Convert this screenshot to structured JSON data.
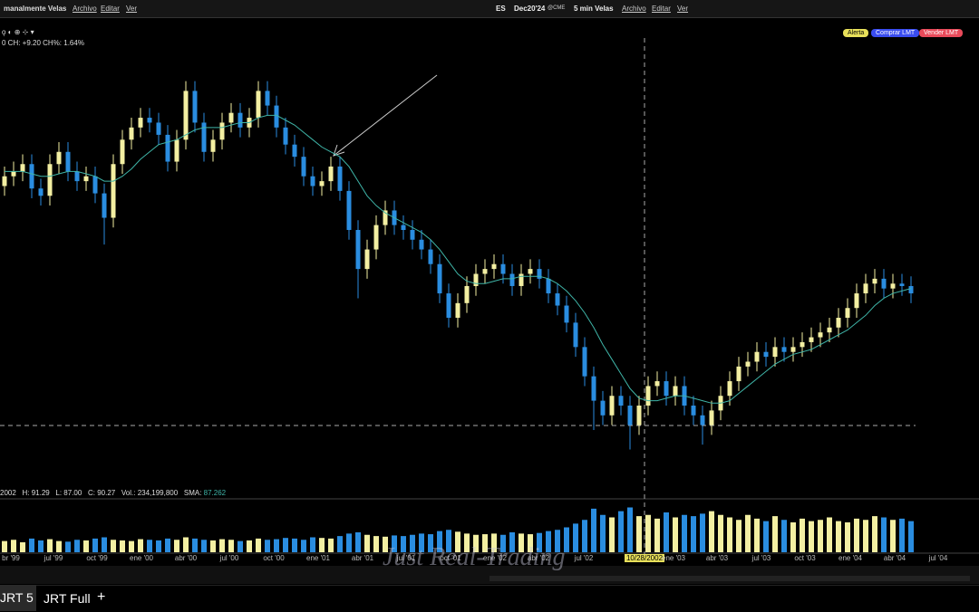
{
  "toolbar": {
    "left_title": "manalmente Velas",
    "left_menu": [
      "Archivo",
      "Editar",
      "Ver"
    ],
    "symbol": "ES",
    "contract": "Dec20'24",
    "exchange": "@CME",
    "interval": "5 min Velas",
    "right_menu": [
      "Archivo",
      "Editar",
      "Ver"
    ],
    "buttons": [
      "Alerta",
      "Comprar LMT",
      "Vender LMT"
    ],
    "change_line": "0 CH: +9.20 CH%: 1.64%"
  },
  "info_line": {
    "date": "2002",
    "high": "H: 91.29",
    "low": "L: 87.00",
    "close": "C: 90.27",
    "volume": "Vol.: 234,199,800",
    "sma_label": "SMA:",
    "sma_value": "87.262"
  },
  "time_labels": [
    "br '99",
    "jul '99",
    "oct '99",
    "ene '00",
    "abr '00",
    "jul '00",
    "oct '00",
    "ene '01",
    "abr '01",
    "jul '01",
    "oct '01",
    "ene '02",
    "abr '02",
    "jul '02",
    "10/28/2002",
    "ene '03",
    "abr '03",
    "jul '03",
    "oct '03",
    "ene '04",
    "abr '04",
    "jul '04"
  ],
  "watermark": "Just Real-Trading",
  "tabs": [
    "JRT 5",
    "JRT Full",
    "+"
  ],
  "chart_data": {
    "type": "candlestick",
    "open": [
      186,
      190,
      192,
      195,
      185,
      182,
      195,
      200,
      192,
      188,
      190,
      183,
      173,
      195,
      205,
      210,
      214,
      212,
      207,
      196,
      205,
      225,
      212,
      200,
      205,
      212,
      216,
      210,
      214,
      225,
      219,
      210,
      203,
      198,
      190,
      186,
      188,
      194,
      184,
      168,
      152,
      160,
      170,
      176,
      170,
      168,
      164,
      160,
      154,
      142,
      132,
      138,
      145,
      150,
      152,
      154,
      150,
      145,
      150,
      152,
      148,
      142,
      137,
      130,
      120,
      108,
      98,
      92,
      100,
      96,
      88,
      96,
      104,
      106,
      100,
      104,
      96,
      92,
      88,
      94,
      100,
      106,
      112,
      114,
      118,
      116,
      120,
      118,
      120,
      122,
      124,
      126,
      128,
      132,
      136,
      142,
      146,
      148,
      144,
      146,
      145
    ],
    "high": [
      194,
      196,
      199,
      199,
      189,
      199,
      204,
      204,
      196,
      194,
      194,
      187,
      199,
      209,
      214,
      218,
      218,
      216,
      211,
      209,
      229,
      229,
      216,
      209,
      216,
      220,
      220,
      218,
      229,
      229,
      223,
      214,
      207,
      202,
      194,
      192,
      198,
      198,
      188,
      172,
      164,
      174,
      180,
      180,
      174,
      172,
      168,
      164,
      158,
      146,
      142,
      149,
      154,
      156,
      158,
      158,
      154,
      154,
      156,
      156,
      152,
      146,
      141,
      134,
      124,
      112,
      102,
      104,
      104,
      100,
      100,
      108,
      110,
      110,
      108,
      108,
      100,
      96,
      98,
      104,
      110,
      116,
      118,
      122,
      122,
      124,
      124,
      124,
      126,
      128,
      130,
      132,
      136,
      140,
      146,
      150,
      152,
      152,
      150,
      150,
      149
    ],
    "low": [
      182,
      186,
      188,
      181,
      178,
      178,
      191,
      188,
      184,
      184,
      179,
      162,
      169,
      191,
      201,
      206,
      208,
      203,
      192,
      192,
      201,
      208,
      196,
      196,
      201,
      208,
      206,
      206,
      210,
      215,
      206,
      199,
      194,
      186,
      182,
      182,
      184,
      180,
      164,
      140,
      148,
      156,
      166,
      166,
      164,
      160,
      156,
      150,
      138,
      128,
      128,
      134,
      141,
      146,
      148,
      146,
      141,
      141,
      146,
      144,
      138,
      133,
      126,
      116,
      104,
      86,
      88,
      88,
      92,
      78,
      84,
      92,
      100,
      96,
      96,
      92,
      88,
      80,
      84,
      90,
      96,
      102,
      108,
      110,
      112,
      112,
      114,
      114,
      116,
      118,
      120,
      122,
      124,
      128,
      132,
      138,
      142,
      140,
      140,
      141,
      138
    ],
    "close": [
      190,
      192,
      195,
      185,
      182,
      195,
      200,
      192,
      188,
      190,
      183,
      173,
      195,
      205,
      210,
      214,
      212,
      207,
      196,
      205,
      225,
      212,
      200,
      205,
      212,
      216,
      210,
      214,
      225,
      219,
      210,
      203,
      198,
      190,
      186,
      188,
      194,
      184,
      168,
      152,
      160,
      170,
      176,
      170,
      168,
      164,
      160,
      154,
      142,
      132,
      138,
      145,
      150,
      152,
      154,
      150,
      145,
      150,
      152,
      148,
      142,
      137,
      130,
      120,
      108,
      98,
      92,
      100,
      96,
      88,
      96,
      104,
      106,
      100,
      104,
      96,
      92,
      88,
      94,
      100,
      106,
      112,
      114,
      118,
      116,
      120,
      118,
      120,
      122,
      124,
      126,
      128,
      132,
      136,
      142,
      146,
      148,
      144,
      146,
      145,
      142
    ],
    "sma": [
      192,
      192,
      192,
      191,
      190,
      190,
      191,
      192,
      192,
      191,
      190,
      188,
      188,
      190,
      193,
      197,
      200,
      203,
      204,
      205,
      207,
      209,
      210,
      210,
      210,
      211,
      212,
      212,
      214,
      215,
      215,
      213,
      211,
      208,
      205,
      202,
      200,
      198,
      194,
      188,
      182,
      178,
      175,
      173,
      171,
      169,
      167,
      164,
      160,
      155,
      150,
      147,
      146,
      146,
      147,
      148,
      148,
      149,
      149,
      149,
      148,
      146,
      143,
      139,
      134,
      128,
      121,
      115,
      109,
      103,
      99,
      98,
      98,
      99,
      100,
      100,
      99,
      98,
      97,
      97,
      98,
      101,
      104,
      107,
      110,
      113,
      115,
      117,
      118,
      119,
      121,
      123,
      125,
      127,
      130,
      133,
      137,
      140,
      142,
      143,
      144
    ],
    "volume": [
      90,
      100,
      80,
      110,
      95,
      105,
      90,
      85,
      100,
      95,
      110,
      120,
      100,
      95,
      90,
      105,
      100,
      95,
      110,
      100,
      120,
      110,
      100,
      95,
      105,
      100,
      90,
      95,
      110,
      100,
      105,
      115,
      110,
      100,
      120,
      115,
      110,
      130,
      150,
      160,
      140,
      130,
      125,
      135,
      130,
      140,
      150,
      145,
      170,
      180,
      165,
      150,
      140,
      145,
      150,
      140,
      160,
      150,
      145,
      155,
      170,
      180,
      200,
      230,
      260,
      350,
      300,
      280,
      330,
      360,
      290,
      300,
      270,
      320,
      280,
      300,
      290,
      310,
      330,
      300,
      280,
      260,
      300,
      270,
      250,
      290,
      260,
      240,
      270,
      250,
      260,
      280,
      250,
      240,
      270,
      260,
      290,
      280,
      260,
      270,
      250
    ],
    "ylim": [
      60,
      240
    ],
    "volume_ylim": [
      0,
      400
    ],
    "up_color": "#f3efa2",
    "down_color": "#2a8de0",
    "sma_color": "#3fb5a8"
  }
}
